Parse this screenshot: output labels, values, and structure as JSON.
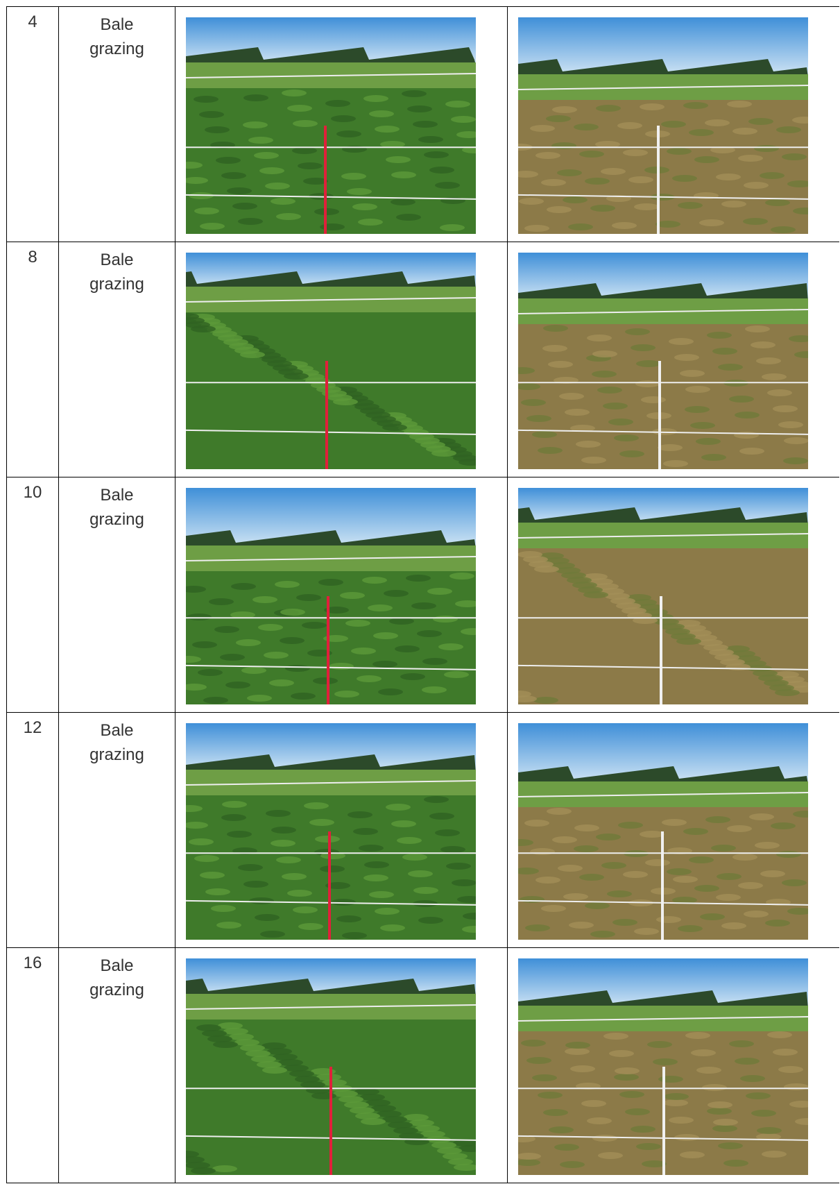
{
  "table": {
    "rows": [
      [
        "4",
        "Bale grazing"
      ],
      [
        "8",
        "Bale grazing"
      ],
      [
        "10",
        "Bale grazing"
      ],
      [
        "12",
        "Bale grazing"
      ],
      [
        "16",
        "Bale grazing"
      ]
    ]
  }
}
